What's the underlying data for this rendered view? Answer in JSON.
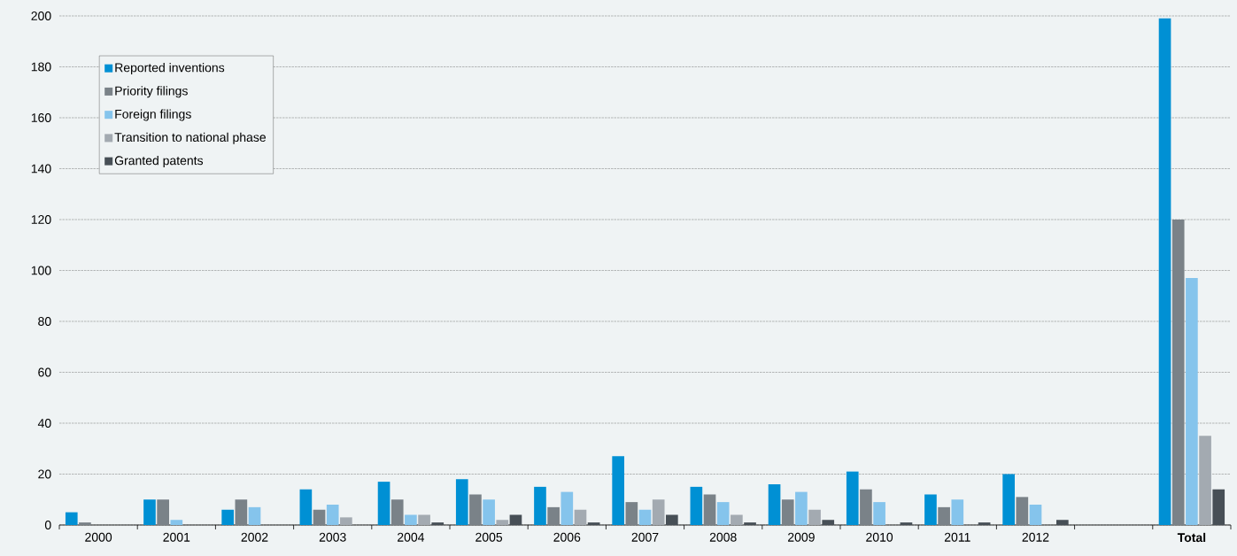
{
  "chart_data": {
    "type": "bar",
    "categories": [
      "2000",
      "2001",
      "2002",
      "2003",
      "2004",
      "2005",
      "2006",
      "2007",
      "2008",
      "2009",
      "2010",
      "2011",
      "2012",
      null,
      "Total"
    ],
    "series": [
      {
        "name": "Reported inventions",
        "color": "#0090d4",
        "values": [
          5,
          10,
          6,
          14,
          17,
          18,
          15,
          27,
          15,
          16,
          21,
          12,
          20,
          null,
          199
        ]
      },
      {
        "name": "Priority filings",
        "color": "#7a8288",
        "values": [
          1,
          10,
          10,
          6,
          10,
          12,
          7,
          9,
          12,
          10,
          14,
          7,
          11,
          null,
          120
        ]
      },
      {
        "name": "Foreign filings",
        "color": "#85c4ec",
        "values": [
          null,
          2,
          7,
          8,
          4,
          10,
          13,
          6,
          9,
          13,
          9,
          10,
          8,
          null,
          97
        ]
      },
      {
        "name": "Transition to national phase",
        "color": "#a3aab1",
        "values": [
          null,
          null,
          null,
          3,
          4,
          2,
          6,
          10,
          4,
          6,
          null,
          null,
          null,
          null,
          35
        ]
      },
      {
        "name": "Granted patents",
        "color": "#474f56",
        "values": [
          null,
          null,
          null,
          null,
          1,
          4,
          1,
          4,
          1,
          2,
          1,
          1,
          2,
          null,
          14
        ]
      }
    ],
    "ylim": [
      0,
      200
    ],
    "yticks": [
      0,
      20,
      40,
      60,
      80,
      100,
      120,
      140,
      160,
      180,
      200
    ],
    "grid": "y",
    "legend": "top left"
  }
}
